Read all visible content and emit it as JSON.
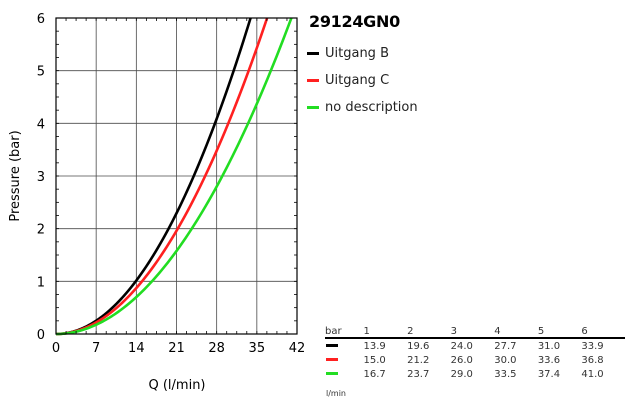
{
  "chart_data": {
    "type": "line",
    "title": "29124GN0",
    "xlabel": "Q (l/min)",
    "ylabel": "Pressure (bar)",
    "xlim": [
      0,
      42
    ],
    "ylim": [
      0,
      6
    ],
    "xticks": [
      0,
      7,
      14,
      21,
      28,
      35,
      42
    ],
    "yticks": [
      0,
      1,
      2,
      3,
      4,
      5,
      6
    ],
    "grid": true,
    "legend_position": "right",
    "series": [
      {
        "name": "Uitgang B",
        "color": "#000000",
        "x": [
          0,
          13.9,
          19.6,
          24.0,
          27.7,
          31.0,
          33.9
        ],
        "y": [
          0,
          1,
          2,
          3,
          4,
          5,
          6
        ]
      },
      {
        "name": "Uitgang C",
        "color": "#ff2020",
        "x": [
          0,
          15.0,
          21.2,
          26.0,
          30.0,
          33.6,
          36.8
        ],
        "y": [
          0,
          1,
          2,
          3,
          4,
          5,
          6
        ]
      },
      {
        "name": "no description",
        "color": "#22dd22",
        "x": [
          0,
          16.7,
          23.7,
          29.0,
          33.5,
          37.4,
          41.0
        ],
        "y": [
          0,
          1,
          2,
          3,
          4,
          5,
          6
        ]
      }
    ]
  },
  "table": {
    "header_label": "bar",
    "unit_label": "l/min",
    "pressures": [
      "1",
      "2",
      "3",
      "4",
      "5",
      "6"
    ],
    "rows": [
      {
        "color": "#000000",
        "values": [
          "13.9",
          "19.6",
          "24.0",
          "27.7",
          "31.0",
          "33.9"
        ]
      },
      {
        "color": "#ff2020",
        "values": [
          "15.0",
          "21.2",
          "26.0",
          "30.0",
          "33.6",
          "36.8"
        ]
      },
      {
        "color": "#22dd22",
        "values": [
          "16.7",
          "23.7",
          "29.0",
          "33.5",
          "37.4",
          "41.0"
        ]
      }
    ]
  }
}
